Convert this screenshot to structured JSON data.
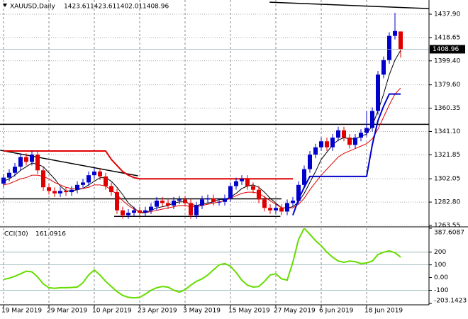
{
  "chart_data": {
    "type": "candlestick",
    "symbol": "XAUUSD,Daily",
    "categories": [
      "19 Mar 2019",
      null,
      null,
      null,
      null,
      null,
      null,
      null,
      "29 Mar 2019",
      null,
      null,
      null,
      null,
      null,
      null,
      null,
      "10 Apr 2019",
      null,
      null,
      null,
      null,
      null,
      null,
      null,
      "23 Apr 2019",
      null,
      null,
      null,
      null,
      null,
      null,
      null,
      "3 May 2019",
      null,
      null,
      null,
      null,
      null,
      null,
      null,
      "15 May 2019",
      null,
      null,
      null,
      null,
      null,
      null,
      null,
      "27 May 2019",
      null,
      null,
      null,
      null,
      null,
      null,
      null,
      "6 Jun 2019",
      null,
      null,
      null,
      null,
      null,
      null,
      null,
      "18 Jun 2019",
      null,
      null,
      null,
      null,
      null,
      null
    ],
    "open": [
      1298,
      1303,
      1307,
      1312,
      1320,
      1316,
      1322,
      1309,
      1295,
      1292,
      1290,
      1292,
      1291,
      1293,
      1297,
      1299,
      1305,
      1308,
      1304,
      1296,
      1291,
      1276,
      1272,
      1274,
      1276,
      1274,
      1276,
      1279,
      1284,
      1282,
      1280,
      1284,
      1285,
      1282,
      1272,
      1280,
      1285,
      1286,
      1283,
      1283,
      1286,
      1296,
      1300,
      1302,
      1296,
      1293,
      1285,
      1278,
      1276,
      1278,
      1275,
      1282,
      1284,
      1297,
      1310,
      1322,
      1328,
      1333,
      1328,
      1336,
      1342,
      1336,
      1330,
      1336,
      1340,
      1344,
      1358,
      1388,
      1400,
      1420,
      1423.61
    ],
    "high": [
      1306,
      1310,
      1315,
      1323,
      1323,
      1325,
      1325,
      1312,
      1298,
      1295,
      1295,
      1295,
      1296,
      1300,
      1302,
      1308,
      1311,
      1311,
      1307,
      1299,
      1294,
      1279,
      1277,
      1279,
      1279,
      1279,
      1282,
      1287,
      1287,
      1285,
      1287,
      1288,
      1288,
      1285,
      1283,
      1288,
      1289,
      1289,
      1286,
      1289,
      1299,
      1303,
      1305,
      1305,
      1299,
      1296,
      1288,
      1281,
      1281,
      1281,
      1285,
      1287,
      1300,
      1313,
      1325,
      1331,
      1336,
      1336,
      1339,
      1345,
      1345,
      1339,
      1339,
      1343,
      1358,
      1361,
      1391,
      1403,
      1423,
      1439,
      1423.61
    ],
    "low": [
      1295,
      1300,
      1304,
      1309,
      1313,
      1313,
      1306,
      1292,
      1289,
      1287,
      1287,
      1288,
      1288,
      1290,
      1294,
      1296,
      1302,
      1301,
      1293,
      1288,
      1273,
      1269,
      1269,
      1271,
      1271,
      1271,
      1273,
      1276,
      1279,
      1277,
      1277,
      1281,
      1279,
      1269,
      1269,
      1277,
      1282,
      1280,
      1280,
      1280,
      1283,
      1293,
      1297,
      1293,
      1290,
      1282,
      1275,
      1273,
      1273,
      1272,
      1272,
      1279,
      1281,
      1294,
      1307,
      1319,
      1325,
      1325,
      1325,
      1333,
      1333,
      1327,
      1327,
      1333,
      1337,
      1341,
      1355,
      1385,
      1397,
      1417,
      1402.01
    ],
    "close": [
      1303,
      1307,
      1312,
      1320,
      1316,
      1322,
      1309,
      1295,
      1292,
      1290,
      1292,
      1291,
      1293,
      1297,
      1299,
      1305,
      1308,
      1304,
      1296,
      1291,
      1276,
      1272,
      1274,
      1276,
      1274,
      1276,
      1279,
      1284,
      1282,
      1280,
      1284,
      1285,
      1282,
      1272,
      1280,
      1285,
      1286,
      1283,
      1283,
      1286,
      1296,
      1300,
      1302,
      1296,
      1293,
      1285,
      1278,
      1276,
      1278,
      1275,
      1282,
      1284,
      1297,
      1310,
      1322,
      1328,
      1333,
      1328,
      1336,
      1342,
      1336,
      1330,
      1336,
      1340,
      1344,
      1358,
      1388,
      1400,
      1420,
      1424,
      1408.96
    ],
    "up_color": "#0000cc",
    "down_color": "#e00000",
    "overlays": [
      {
        "color": "#000000",
        "values": [
          1300,
          1302,
          1305,
          1309,
          1312,
          1315,
          1314,
          1312,
          1307,
          1302,
          1296,
          1292,
          1292,
          1293,
          1294,
          1297,
          1300,
          1303,
          1303,
          1300,
          1295,
          1289,
          1282,
          1278,
          1274,
          1274,
          1276,
          1278,
          1279,
          1280,
          1282,
          1283,
          1283,
          1281,
          1280,
          1281,
          1282,
          1283,
          1285,
          1285,
          1287,
          1290,
          1294,
          1296,
          1297,
          1295,
          1291,
          1286,
          1282,
          1278,
          1278,
          1279,
          1283,
          1290,
          1299,
          1308,
          1318,
          1324,
          1330,
          1334,
          1336,
          1335,
          1335,
          1337,
          1339,
          1346,
          1358,
          1372,
          1388,
          1400,
          1408
        ]
      },
      {
        "color": "#e00000",
        "values": [
          1297,
          1298,
          1300,
          1302,
          1303,
          1305,
          1305,
          1304,
          1302,
          1299,
          1297,
          1295,
          1294,
          1294,
          1294,
          1295,
          1297,
          1297,
          1296,
          1293,
          1289,
          1284,
          1280,
          1277,
          1275,
          1274,
          1275,
          1276,
          1277,
          1278,
          1279,
          1280,
          1280,
          1279,
          1279,
          1280,
          1281,
          1282,
          1283,
          1284,
          1286,
          1288,
          1290,
          1291,
          1291,
          1290,
          1287,
          1284,
          1281,
          1278,
          1278,
          1278,
          1281,
          1286,
          1293,
          1299,
          1305,
          1310,
          1315,
          1320,
          1323,
          1325,
          1327,
          1329,
          1331,
          1335,
          1343,
          1353,
          1363,
          1372,
          1377
        ]
      },
      {
        "color": "#e00000",
        "width": 2,
        "values": [
          1325,
          1325,
          1325,
          1325,
          1325,
          1325,
          1325,
          1325,
          1325,
          1325,
          1325,
          1325,
          1325,
          1325,
          1325,
          1325,
          1325,
          1325,
          1325,
          1318,
          1313,
          1308,
          1305,
          1303,
          1302,
          1302,
          1302,
          1302,
          1302,
          1302,
          1302,
          1302,
          1302,
          1302,
          1302,
          1302,
          1302,
          1302,
          1302,
          1302,
          1302,
          1302,
          1302,
          1302,
          1302,
          1302,
          1302,
          1302,
          1302,
          1302,
          1302,
          1302,
          null,
          null,
          null,
          null,
          null,
          null,
          null,
          null,
          null,
          null,
          null,
          null,
          null,
          null,
          null,
          null,
          null,
          null,
          null
        ]
      },
      {
        "color": "#0000cc",
        "width": 2,
        "values": [
          null,
          null,
          null,
          null,
          null,
          null,
          null,
          null,
          null,
          null,
          null,
          null,
          null,
          null,
          null,
          null,
          null,
          null,
          null,
          null,
          null,
          null,
          null,
          null,
          null,
          null,
          null,
          null,
          null,
          null,
          null,
          null,
          null,
          null,
          null,
          null,
          null,
          null,
          null,
          null,
          null,
          null,
          null,
          null,
          null,
          null,
          null,
          null,
          null,
          null,
          null,
          1272,
          1285,
          1295,
          1304,
          1304,
          1304,
          1304,
          1304,
          1304,
          1304,
          1304,
          1304,
          1304,
          1304,
          1330,
          1350,
          1362,
          1372,
          1372,
          1372
        ]
      }
    ],
    "trend_lines": [
      {
        "x": [
          -1,
          75
        ],
        "y": [
          1347,
          1347
        ],
        "color": "#000000"
      },
      {
        "x": [
          -1,
          49
        ],
        "y": [
          1285.5,
          1285.5
        ],
        "color": "#000000"
      },
      {
        "x": [
          19.5,
          48.8
        ],
        "y": [
          1271,
          1271
        ],
        "color": "#000000"
      },
      {
        "x": [
          -0.6,
          23.7
        ],
        "y": [
          1325.6,
          1304.5
        ],
        "color": "#000000"
      },
      {
        "x": [
          46.9,
          75
        ],
        "y": [
          1447.8,
          1442.5
        ],
        "color": "#000000"
      }
    ],
    "ylim": [
      1263.55,
      1449.6
    ],
    "yticks": [
      {
        "value": 1437.9,
        "label": "1437.90"
      },
      1418.65,
      {
        "value": 1399.4,
        "label": "1399.40"
      },
      {
        "value": 1379.6,
        "label": "1379.60"
      },
      1360.35,
      {
        "value": 1341.1,
        "label": "1341.10"
      },
      1321.85,
      1302.05,
      {
        "value": 1282.8,
        "label": "1282.80"
      },
      1263.55
    ],
    "grid": true,
    "indicator": {
      "title": "CCI(30)",
      "color": "#66dd00",
      "values": [
        -15,
        -5,
        10,
        30,
        50,
        45,
        5,
        -50,
        -80,
        -85,
        -80,
        -80,
        -78,
        -75,
        -40,
        20,
        60,
        20,
        -30,
        -70,
        -110,
        -140,
        -155,
        -160,
        -155,
        -130,
        -100,
        -80,
        -70,
        -75,
        -100,
        -115,
        -95,
        -60,
        -30,
        -10,
        20,
        60,
        100,
        110,
        90,
        40,
        -20,
        -60,
        -75,
        -70,
        -30,
        20,
        30,
        -10,
        -20,
        120,
        300,
        387.6087,
        340,
        290,
        250,
        200,
        160,
        130,
        120,
        130,
        125,
        110,
        115,
        130,
        180,
        200,
        210,
        195,
        161.0916
      ],
      "ylim": [
        -203.1423,
        387.6087
      ],
      "yticks": [
        387.6087,
        200,
        100,
        {
          "value": 0,
          "label": "0.00"
        },
        -100,
        -203.1423
      ],
      "levels": [
        200,
        100,
        -100
      ]
    }
  }
}
